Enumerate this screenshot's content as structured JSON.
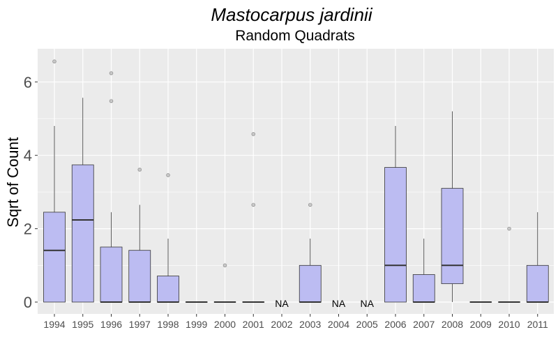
{
  "chart_data": {
    "type": "box",
    "title": "Mastocarpus jardinii",
    "subtitle": "Random Quadrats",
    "xlabel": "",
    "ylabel": "Sqrt of Count",
    "ylim": [
      -0.32,
      6.92
    ],
    "yticks": [
      0,
      2,
      4,
      6
    ],
    "grid": true,
    "categories": [
      "1994",
      "1995",
      "1996",
      "1997",
      "1998",
      "1999",
      "2000",
      "2001",
      "2002",
      "2003",
      "2004",
      "2005",
      "2006",
      "2007",
      "2008",
      "2009",
      "2010",
      "2011"
    ],
    "boxes": [
      {
        "x": "1994",
        "q1": 0,
        "median": 1.41,
        "q3": 2.45,
        "whisker_low": 0,
        "whisker_high": 4.8,
        "outliers": [
          6.56
        ]
      },
      {
        "x": "1995",
        "q1": 0,
        "median": 2.24,
        "q3": 3.74,
        "whisker_low": 0,
        "whisker_high": 5.57,
        "outliers": []
      },
      {
        "x": "1996",
        "q1": 0,
        "median": 0,
        "q3": 1.5,
        "whisker_low": 0,
        "whisker_high": 2.45,
        "outliers": [
          5.48,
          6.24
        ]
      },
      {
        "x": "1997",
        "q1": 0,
        "median": 0,
        "q3": 1.41,
        "whisker_low": 0,
        "whisker_high": 2.65,
        "outliers": [
          3.61
        ]
      },
      {
        "x": "1998",
        "q1": 0,
        "median": 0,
        "q3": 0.71,
        "whisker_low": 0,
        "whisker_high": 1.73,
        "outliers": [
          3.46
        ]
      },
      {
        "x": "1999",
        "q1": 0,
        "median": 0,
        "q3": 0,
        "whisker_low": 0,
        "whisker_high": 0,
        "outliers": []
      },
      {
        "x": "2000",
        "q1": 0,
        "median": 0,
        "q3": 0,
        "whisker_low": 0,
        "whisker_high": 0,
        "outliers": [
          1.0
        ]
      },
      {
        "x": "2001",
        "q1": 0,
        "median": 0,
        "q3": 0,
        "whisker_low": 0,
        "whisker_high": 0,
        "outliers": [
          2.65,
          4.58
        ]
      },
      {
        "x": "2002",
        "na": true
      },
      {
        "x": "2003",
        "q1": 0,
        "median": 0,
        "q3": 1.0,
        "whisker_low": 0,
        "whisker_high": 1.73,
        "outliers": [
          2.65
        ]
      },
      {
        "x": "2004",
        "na": true
      },
      {
        "x": "2005",
        "na": true
      },
      {
        "x": "2006",
        "q1": 0,
        "median": 1.0,
        "q3": 3.67,
        "whisker_low": 0,
        "whisker_high": 4.8,
        "outliers": []
      },
      {
        "x": "2007",
        "q1": 0,
        "median": 0,
        "q3": 0.75,
        "whisker_low": 0,
        "whisker_high": 1.73,
        "outliers": []
      },
      {
        "x": "2008",
        "q1": 0.5,
        "median": 1.0,
        "q3": 3.1,
        "whisker_low": 0,
        "whisker_high": 5.2,
        "outliers": []
      },
      {
        "x": "2009",
        "q1": 0,
        "median": 0,
        "q3": 0,
        "whisker_low": 0,
        "whisker_high": 0,
        "outliers": []
      },
      {
        "x": "2010",
        "q1": 0,
        "median": 0,
        "q3": 0,
        "whisker_low": 0,
        "whisker_high": 0,
        "outliers": [
          2.0
        ]
      },
      {
        "x": "2011",
        "q1": 0,
        "median": 0,
        "q3": 1.0,
        "whisker_low": 0,
        "whisker_high": 2.45,
        "outliers": []
      }
    ],
    "na_label": "NA",
    "colors": {
      "panel": "#ebebeb",
      "grid_major": "#ffffff",
      "box_fill": "#bcbcf2",
      "box_stroke": "#333333",
      "outlier_fill": "#bdbdbd",
      "outlier_stroke": "#8c8c8c"
    }
  }
}
